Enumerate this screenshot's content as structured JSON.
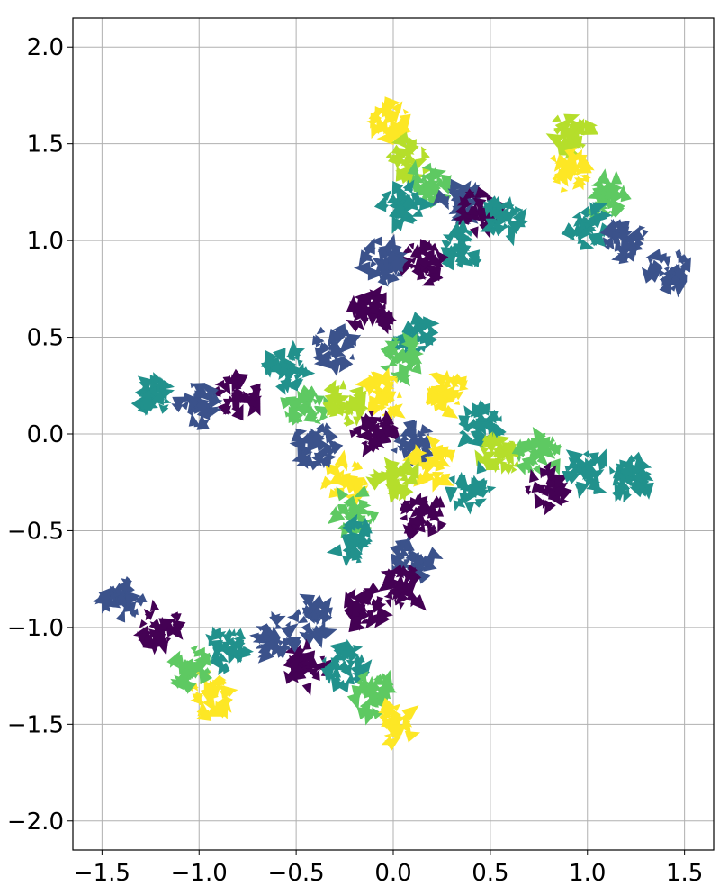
{
  "chart_data": {
    "type": "scatter",
    "title": "",
    "xlabel": "",
    "ylabel": "",
    "xlim": [
      -1.65,
      1.65
    ],
    "ylim": [
      -2.15,
      2.15
    ],
    "grid": true,
    "x_ticks": [
      -1.5,
      -1.0,
      -0.5,
      0.0,
      0.5,
      1.0,
      1.5
    ],
    "y_ticks": [
      -2.0,
      -1.5,
      -1.0,
      -0.5,
      0.0,
      0.5,
      1.0,
      1.5,
      2.0
    ],
    "x_tick_labels": [
      "−1.5",
      "−1.0",
      "−0.5",
      "0.0",
      "0.5",
      "1.0",
      "1.5"
    ],
    "y_tick_labels": [
      "−2.0",
      "−1.5",
      "−1.0",
      "−0.5",
      "0.0",
      "0.5",
      "1.0",
      "1.5",
      "2.0"
    ],
    "colormap": [
      "#440154",
      "#3b528b",
      "#21918c",
      "#5ec962",
      "#fde725"
    ],
    "clusters": [
      {
        "x": 0.0,
        "y": 1.62,
        "color": "#fde725"
      },
      {
        "x": 0.08,
        "y": 1.42,
        "color": "#b5de2b"
      },
      {
        "x": 0.18,
        "y": 1.28,
        "color": "#5ec962"
      },
      {
        "x": 0.05,
        "y": 1.18,
        "color": "#21918c"
      },
      {
        "x": 0.35,
        "y": 1.2,
        "color": "#3b528b"
      },
      {
        "x": 0.45,
        "y": 1.15,
        "color": "#440154"
      },
      {
        "x": 0.58,
        "y": 1.12,
        "color": "#21918c"
      },
      {
        "x": 0.92,
        "y": 1.55,
        "color": "#b5de2b"
      },
      {
        "x": 0.9,
        "y": 1.35,
        "color": "#fde725"
      },
      {
        "x": 1.1,
        "y": 1.22,
        "color": "#5ec962"
      },
      {
        "x": 1.0,
        "y": 1.08,
        "color": "#21918c"
      },
      {
        "x": 1.2,
        "y": 1.0,
        "color": "#3b528b"
      },
      {
        "x": 1.42,
        "y": 0.85,
        "color": "#3b528b"
      },
      {
        "x": 0.35,
        "y": 0.95,
        "color": "#21918c"
      },
      {
        "x": 0.15,
        "y": 0.88,
        "color": "#440154"
      },
      {
        "x": -0.05,
        "y": 0.9,
        "color": "#3b528b"
      },
      {
        "x": -0.12,
        "y": 0.62,
        "color": "#440154"
      },
      {
        "x": 0.1,
        "y": 0.5,
        "color": "#21918c"
      },
      {
        "x": 0.05,
        "y": 0.4,
        "color": "#5ec962"
      },
      {
        "x": -0.3,
        "y": 0.45,
        "color": "#3b528b"
      },
      {
        "x": -0.55,
        "y": 0.35,
        "color": "#21918c"
      },
      {
        "x": -0.8,
        "y": 0.2,
        "color": "#440154"
      },
      {
        "x": -1.0,
        "y": 0.15,
        "color": "#3b528b"
      },
      {
        "x": -1.25,
        "y": 0.2,
        "color": "#21918c"
      },
      {
        "x": -0.45,
        "y": 0.15,
        "color": "#5ec962"
      },
      {
        "x": -0.25,
        "y": 0.15,
        "color": "#b5de2b"
      },
      {
        "x": -0.05,
        "y": 0.2,
        "color": "#fde725"
      },
      {
        "x": -0.1,
        "y": 0.0,
        "color": "#440154"
      },
      {
        "x": 0.1,
        "y": -0.05,
        "color": "#3b528b"
      },
      {
        "x": 0.28,
        "y": 0.22,
        "color": "#fde725"
      },
      {
        "x": 0.45,
        "y": 0.05,
        "color": "#21918c"
      },
      {
        "x": 0.55,
        "y": -0.1,
        "color": "#b5de2b"
      },
      {
        "x": 0.75,
        "y": -0.1,
        "color": "#5ec962"
      },
      {
        "x": 0.8,
        "y": -0.28,
        "color": "#440154"
      },
      {
        "x": 1.0,
        "y": -0.2,
        "color": "#21918c"
      },
      {
        "x": 1.22,
        "y": -0.22,
        "color": "#21918c"
      },
      {
        "x": 0.4,
        "y": -0.28,
        "color": "#21918c"
      },
      {
        "x": 0.2,
        "y": -0.15,
        "color": "#fde725"
      },
      {
        "x": 0.0,
        "y": -0.22,
        "color": "#b5de2b"
      },
      {
        "x": -0.25,
        "y": -0.25,
        "color": "#fde725"
      },
      {
        "x": -0.4,
        "y": -0.05,
        "color": "#3b528b"
      },
      {
        "x": -0.2,
        "y": -0.4,
        "color": "#5ec962"
      },
      {
        "x": 0.15,
        "y": -0.42,
        "color": "#440154"
      },
      {
        "x": -0.2,
        "y": -0.55,
        "color": "#21918c"
      },
      {
        "x": 0.1,
        "y": -0.65,
        "color": "#3b528b"
      },
      {
        "x": 0.05,
        "y": -0.8,
        "color": "#440154"
      },
      {
        "x": -0.15,
        "y": -0.9,
        "color": "#440154"
      },
      {
        "x": -0.4,
        "y": -0.95,
        "color": "#3b528b"
      },
      {
        "x": -0.45,
        "y": -1.2,
        "color": "#440154"
      },
      {
        "x": -0.25,
        "y": -1.2,
        "color": "#21918c"
      },
      {
        "x": -0.1,
        "y": -1.35,
        "color": "#5ec962"
      },
      {
        "x": 0.0,
        "y": -1.5,
        "color": "#fde725"
      },
      {
        "x": -0.6,
        "y": -1.05,
        "color": "#3b528b"
      },
      {
        "x": -0.85,
        "y": -1.12,
        "color": "#21918c"
      },
      {
        "x": -0.95,
        "y": -1.35,
        "color": "#fde725"
      },
      {
        "x": -1.05,
        "y": -1.2,
        "color": "#5ec962"
      },
      {
        "x": -1.2,
        "y": -1.0,
        "color": "#440154"
      },
      {
        "x": -1.4,
        "y": -0.85,
        "color": "#3b528b"
      }
    ]
  }
}
